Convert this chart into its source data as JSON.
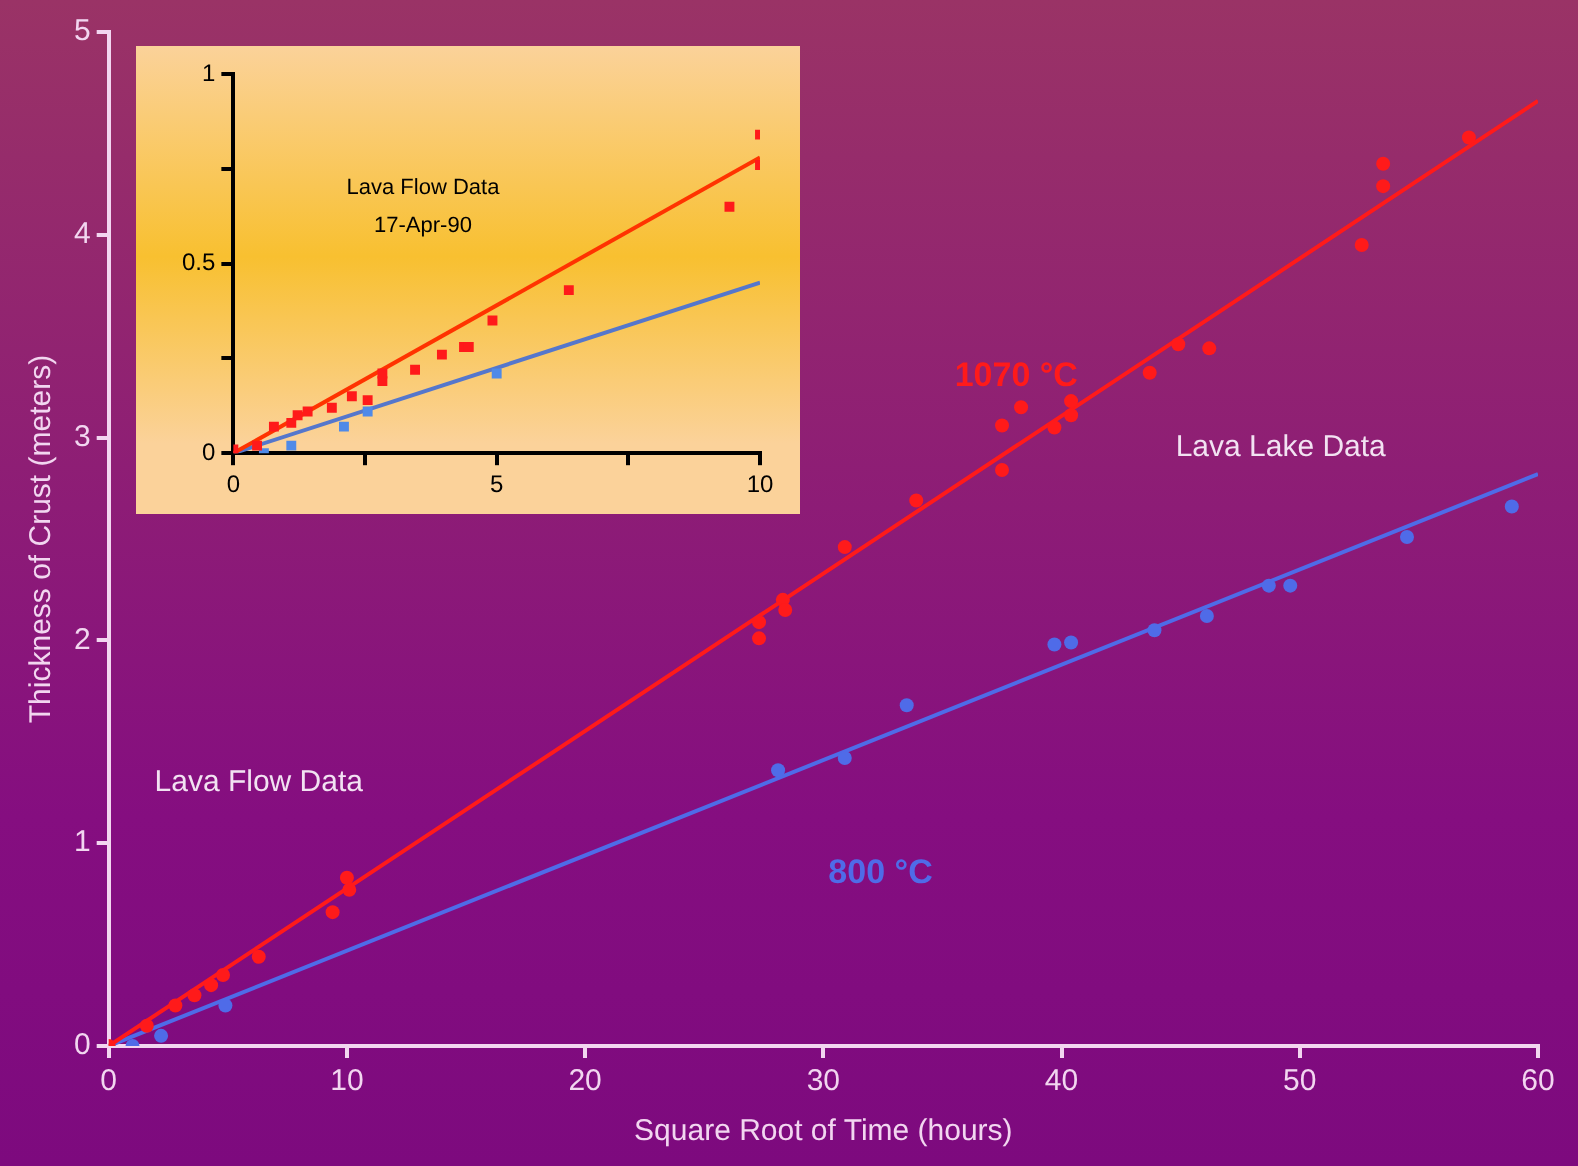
{
  "chart_data": [
    {
      "type": "scatter",
      "xlabel": "Square Root of Time (hours)",
      "ylabel": "Thickness of Crust (meters)",
      "xlim": [
        0,
        60
      ],
      "ylim": [
        0,
        5
      ],
      "xticks": [
        0,
        10,
        20,
        30,
        40,
        50,
        60
      ],
      "yticks": [
        0,
        1,
        2,
        3,
        4,
        5
      ],
      "grid": false,
      "legend": false,
      "series": [
        {
          "name": "1070 °C",
          "color": "#ff1a1a",
          "marker": "circle",
          "x": [
            0,
            1.6,
            2.8,
            3.6,
            4.3,
            4.8,
            6.3,
            9.4,
            10.0,
            10.1,
            27.3,
            27.3,
            28.3,
            28.4,
            30.9,
            33.9,
            37.5,
            37.5,
            38.3,
            39.7,
            40.4,
            40.4,
            43.7,
            44.9,
            46.2,
            52.6,
            53.5,
            53.5,
            57.1
          ],
          "values": [
            0,
            0.1,
            0.2,
            0.25,
            0.3,
            0.35,
            0.44,
            0.66,
            0.83,
            0.77,
            2.09,
            2.01,
            2.2,
            2.15,
            2.46,
            2.69,
            3.06,
            2.84,
            3.15,
            3.05,
            3.18,
            3.11,
            3.32,
            3.46,
            3.44,
            3.95,
            4.35,
            4.24,
            4.48
          ]
        },
        {
          "name": "800 °C",
          "color": "#4f6be8",
          "marker": "circle",
          "x": [
            1.0,
            2.2,
            4.9,
            28.1,
            30.9,
            33.5,
            39.7,
            40.4,
            43.9,
            46.1,
            48.7,
            49.6,
            54.5,
            58.9
          ],
          "values": [
            0,
            0.05,
            0.2,
            1.36,
            1.42,
            1.68,
            1.98,
            1.99,
            2.05,
            2.12,
            2.27,
            2.27,
            2.51,
            2.66
          ]
        },
        {
          "type": "line",
          "color": "#ff1a1a",
          "marker": "none",
          "x": [
            0,
            60
          ],
          "values": [
            0,
            4.66
          ]
        },
        {
          "type": "line",
          "color": "#4f6be8",
          "marker": "none",
          "x": [
            0,
            60
          ],
          "values": [
            0,
            2.82
          ]
        }
      ],
      "annotations": [
        "Lava Lake Data",
        "Lava Flow Data"
      ]
    },
    {
      "type": "scatter",
      "xlim": [
        0,
        10
      ],
      "ylim": [
        0,
        1
      ],
      "xticks": [
        0,
        {
          "value": 2.5,
          "label": null
        },
        5,
        {
          "value": 7.5,
          "label": null
        },
        10
      ],
      "yticks": [
        0,
        {
          "value": 0.25,
          "label": null
        },
        0.5,
        {
          "value": 0.75,
          "label": null
        },
        1
      ],
      "grid": false,
      "legend": false,
      "series": [
        {
          "color": "#ff1a1a",
          "marker": "square",
          "x": [
            0,
            0.45,
            0.77,
            1.1,
            1.22,
            1.41,
            1.87,
            2.25,
            2.55,
            2.83,
            2.83,
            3.45,
            3.96,
            4.38,
            4.47,
            4.92,
            6.37,
            9.42,
            10,
            10
          ],
          "values": [
            0.01,
            0.02,
            0.07,
            0.08,
            0.1,
            0.11,
            0.12,
            0.15,
            0.14,
            0.19,
            0.21,
            0.22,
            0.26,
            0.28,
            0.28,
            0.35,
            0.43,
            0.65,
            0.76,
            0.84
          ]
        },
        {
          "color": "#4f8ae8",
          "marker": "square",
          "x": [
            0.58,
            1.1,
            2.1,
            2.55,
            5.0
          ],
          "values": [
            0,
            0.02,
            0.07,
            0.11,
            0.21
          ]
        },
        {
          "type": "line",
          "color": "#ff3300",
          "marker": "none",
          "x": [
            0,
            10
          ],
          "values": [
            0,
            0.78
          ]
        },
        {
          "type": "line",
          "color": "#5577cc",
          "marker": "none",
          "x": [
            0,
            10
          ],
          "values": [
            0,
            0.45
          ]
        }
      ],
      "annotations": [
        "Lava Flow Data",
        "17-Apr-90"
      ]
    }
  ]
}
